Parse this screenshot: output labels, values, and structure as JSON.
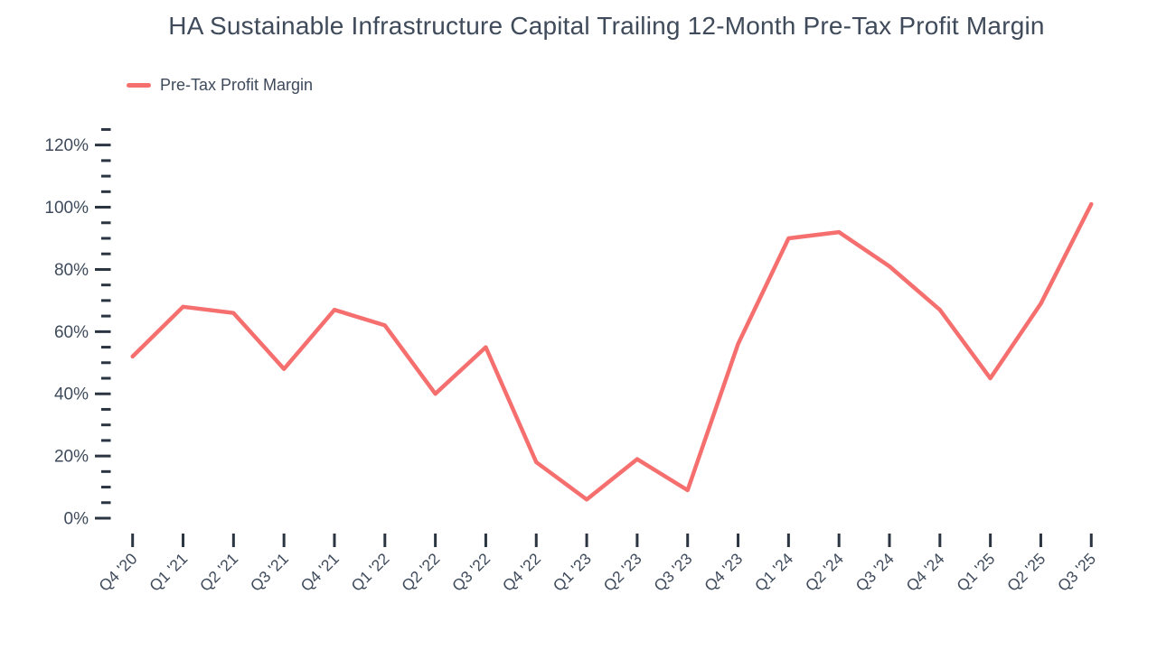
{
  "chart_data": {
    "type": "line",
    "title": "HA Sustainable Infrastructure Capital Trailing 12-Month Pre-Tax Profit Margin",
    "xlabel": "",
    "ylabel": "",
    "categories": [
      "Q4 '20",
      "Q1 '21",
      "Q2 '21",
      "Q3 '21",
      "Q4 '21",
      "Q1 '22",
      "Q2 '22",
      "Q3 '22",
      "Q4 '22",
      "Q1 '23",
      "Q2 '23",
      "Q3 '23",
      "Q4 '23",
      "Q1 '24",
      "Q2 '24",
      "Q3 '24",
      "Q4 '24",
      "Q1 '25",
      "Q2 '25",
      "Q3 '25"
    ],
    "series": [
      {
        "name": "Pre-Tax Profit Margin",
        "color": "#F66F6F",
        "values": [
          52,
          68,
          66,
          48,
          67,
          62,
          40,
          55,
          18,
          6,
          19,
          9,
          56,
          90,
          92,
          81,
          67,
          45,
          69,
          101
        ]
      }
    ],
    "ylim": [
      0,
      125
    ],
    "y_tick_values": [
      0,
      20,
      40,
      60,
      80,
      100,
      120
    ],
    "y_tick_labels": [
      "0%",
      "20%",
      "40%",
      "60%",
      "80%",
      "100%",
      "120%"
    ],
    "y_minor_tick_step": 5,
    "grid": false,
    "legend_position": "top-left",
    "colors": {
      "title_text": "#3F4A5A",
      "axis_text": "#3E4A5B",
      "tick": "#2B3542",
      "background": "#FFFFFF"
    }
  }
}
